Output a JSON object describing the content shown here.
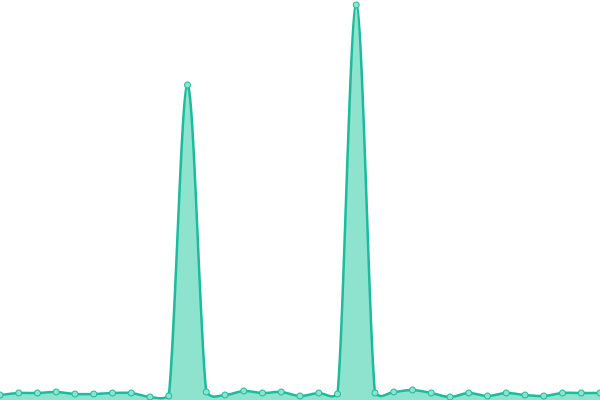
{
  "chart_data": {
    "type": "area",
    "values": [
      5,
      7,
      7,
      8,
      6,
      6,
      7,
      7,
      3,
      4,
      315,
      8,
      5,
      9,
      7,
      8,
      4,
      7,
      6,
      395,
      7,
      8,
      10,
      7,
      3,
      7,
      4,
      7,
      5,
      4,
      7,
      7,
      7
    ],
    "color": "#1abc9c",
    "fill_color": "#8ee3cf"
  }
}
